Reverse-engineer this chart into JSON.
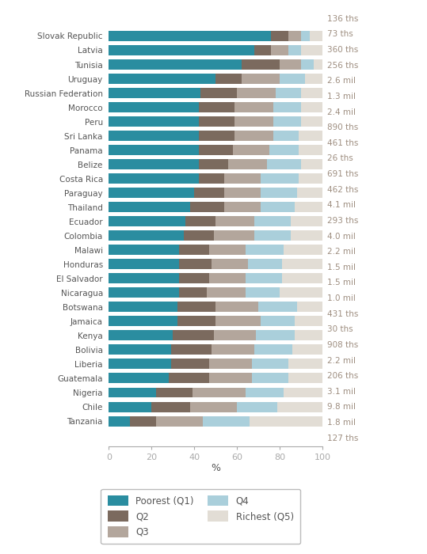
{
  "countries": [
    "Tanzania",
    "Chile",
    "Nigeria",
    "Guatemala",
    "Liberia",
    "Bolivia",
    "Kenya",
    "Jamaica",
    "Botswana",
    "Nicaragua",
    "El Salvador",
    "Honduras",
    "Malawi",
    "Colombia",
    "Ecuador",
    "Thailand",
    "Paraguay",
    "Costa Rica",
    "Belize",
    "Panama",
    "Sri Lanka",
    "Peru",
    "Morocco",
    "Russian Federation",
    "Uruguay",
    "Tunisia",
    "Latvia",
    "Slovak Republic"
  ],
  "labels": [
    "127 ths",
    "1.8 mil",
    "9.8 mil",
    "3.1 mil",
    "206 ths",
    "2.2 mil",
    "908 ths",
    "30 ths",
    "431 ths",
    "1.0 mil",
    "1.5 mil",
    "1.5 mil",
    "2.2 mil",
    "4.0 mil",
    "293 ths",
    "4.1 mil",
    "462 ths",
    "691 ths",
    "26 ths",
    "461 ths",
    "890 ths",
    "2.4 mil",
    "1.3 mil",
    "2.6 mil",
    "256 ths",
    "360 ths",
    "73 ths",
    "136 ths"
  ],
  "q1": [
    10,
    20,
    22,
    28,
    29,
    29,
    30,
    32,
    32,
    33,
    33,
    33,
    33,
    35,
    36,
    38,
    40,
    42,
    42,
    42,
    42,
    42,
    42,
    43,
    50,
    62,
    68,
    76
  ],
  "q2": [
    12,
    18,
    17,
    19,
    18,
    19,
    19,
    18,
    18,
    13,
    14,
    15,
    14,
    14,
    14,
    16,
    14,
    12,
    14,
    16,
    17,
    17,
    17,
    17,
    12,
    18,
    8,
    8
  ],
  "q3": [
    22,
    22,
    25,
    20,
    20,
    20,
    20,
    21,
    20,
    18,
    17,
    17,
    17,
    19,
    18,
    17,
    17,
    17,
    18,
    17,
    18,
    18,
    18,
    18,
    18,
    10,
    8,
    6
  ],
  "q4": [
    22,
    19,
    18,
    17,
    17,
    18,
    18,
    16,
    18,
    16,
    17,
    16,
    18,
    17,
    17,
    16,
    17,
    18,
    16,
    14,
    12,
    13,
    13,
    12,
    12,
    6,
    6,
    4
  ],
  "q5": [
    34,
    21,
    18,
    16,
    16,
    14,
    13,
    13,
    12,
    20,
    19,
    19,
    18,
    15,
    15,
    13,
    12,
    11,
    10,
    11,
    11,
    10,
    10,
    10,
    8,
    4,
    10,
    6
  ],
  "colors": {
    "q1": "#2a8da0",
    "q2": "#7b6a5e",
    "q3": "#b3a69c",
    "q4": "#aacfdb",
    "q5": "#e2ddd5"
  },
  "xlabel": "%",
  "label_color": "#9e8e80",
  "text_color": "#555555",
  "spine_color": "#aaaaaa"
}
